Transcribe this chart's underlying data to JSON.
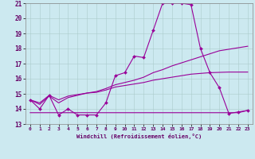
{
  "title": "",
  "xlabel": "Windchill (Refroidissement éolien,°C)",
  "xlim": [
    -0.5,
    23.5
  ],
  "ylim": [
    13,
    21
  ],
  "yticks": [
    13,
    14,
    15,
    16,
    17,
    18,
    19,
    20,
    21
  ],
  "xticks": [
    0,
    1,
    2,
    3,
    4,
    5,
    6,
    7,
    8,
    9,
    10,
    11,
    12,
    13,
    14,
    15,
    16,
    17,
    18,
    19,
    20,
    21,
    22,
    23
  ],
  "bg_color": "#cce9f0",
  "line_color": "#990099",
  "grid_color": "#aacccc",
  "lines": [
    {
      "x": [
        0,
        1,
        2,
        3,
        4,
        5,
        6,
        7,
        8,
        9,
        10,
        11,
        12,
        13,
        14,
        15,
        16,
        17,
        18,
        19,
        20,
        21,
        22,
        23
      ],
      "y": [
        14.6,
        14.0,
        14.9,
        13.6,
        14.0,
        13.6,
        13.6,
        13.6,
        14.4,
        16.2,
        16.4,
        17.5,
        17.4,
        19.2,
        21.0,
        21.0,
        21.0,
        20.9,
        18.0,
        16.4,
        15.4,
        13.7,
        13.8,
        13.9
      ],
      "marker": true,
      "linewidth": 0.8
    },
    {
      "x": [
        0,
        1,
        2,
        3,
        4,
        5,
        6,
        7,
        8,
        9,
        10,
        11,
        12,
        13,
        14,
        15,
        16,
        17,
        18,
        19,
        20,
        21,
        22,
        23
      ],
      "y": [
        14.6,
        14.3,
        14.85,
        14.4,
        14.75,
        14.9,
        15.05,
        15.15,
        15.35,
        15.6,
        15.75,
        15.9,
        16.1,
        16.4,
        16.6,
        16.85,
        17.05,
        17.25,
        17.45,
        17.65,
        17.85,
        17.95,
        18.05,
        18.15
      ],
      "marker": false,
      "linewidth": 0.8
    },
    {
      "x": [
        0,
        1,
        2,
        3,
        4,
        5,
        6,
        7,
        8,
        9,
        10,
        11,
        12,
        13,
        14,
        15,
        16,
        17,
        18,
        19,
        20,
        21,
        22,
        23
      ],
      "y": [
        14.6,
        14.4,
        14.9,
        14.6,
        14.85,
        14.95,
        15.05,
        15.1,
        15.25,
        15.45,
        15.55,
        15.65,
        15.75,
        15.9,
        16.0,
        16.1,
        16.2,
        16.3,
        16.35,
        16.4,
        16.42,
        16.44,
        16.44,
        16.44
      ],
      "marker": false,
      "linewidth": 0.8
    },
    {
      "x": [
        0,
        1,
        2,
        3,
        4,
        5,
        6,
        7,
        8,
        9,
        10,
        11,
        12,
        13,
        14,
        15,
        16,
        17,
        18,
        19,
        20,
        21,
        22,
        23
      ],
      "y": [
        13.75,
        13.75,
        13.75,
        13.75,
        13.75,
        13.75,
        13.75,
        13.75,
        13.75,
        13.75,
        13.75,
        13.75,
        13.75,
        13.75,
        13.75,
        13.75,
        13.75,
        13.75,
        13.75,
        13.75,
        13.75,
        13.75,
        13.75,
        13.9
      ],
      "marker": false,
      "linewidth": 0.8
    }
  ]
}
